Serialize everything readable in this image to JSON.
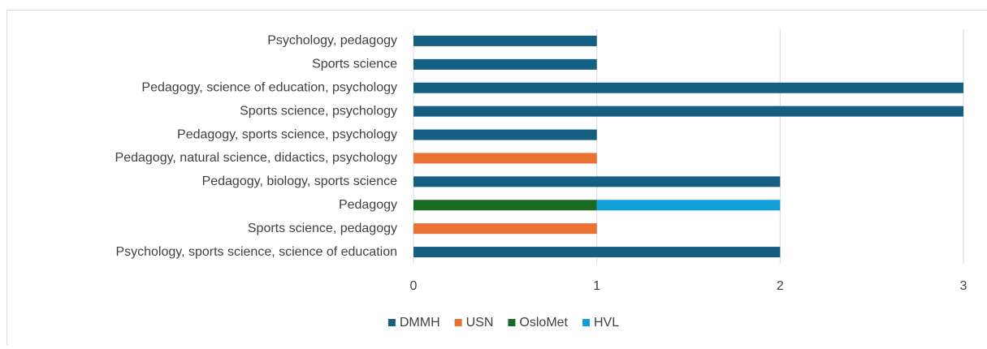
{
  "chart_data": {
    "type": "bar",
    "orientation": "horizontal",
    "stacked": true,
    "categories": [
      "Psychology, pedagogy",
      "Sports science",
      "Pedagogy, science of education, psychology",
      "Sports science, psychology",
      "Pedagogy, sports science, psychology",
      "Pedagogy, natural science, didactics, psychology",
      "Pedagogy, biology, sports science",
      "Pedagogy",
      "Sports science, pedagogy",
      "Psychology, sports science, science of education"
    ],
    "series": [
      {
        "name": "DMMH",
        "color": "#156082",
        "values": [
          1,
          1,
          3,
          3,
          1,
          null,
          2,
          null,
          null,
          2
        ]
      },
      {
        "name": "USN",
        "color": "#e97132",
        "values": [
          null,
          null,
          null,
          null,
          null,
          1,
          null,
          null,
          1,
          null
        ]
      },
      {
        "name": "OsloMet",
        "color": "#196b24",
        "values": [
          null,
          null,
          null,
          null,
          null,
          null,
          null,
          1,
          null,
          null
        ]
      },
      {
        "name": "HVL",
        "color": "#0f9ed5",
        "values": [
          null,
          null,
          null,
          null,
          null,
          null,
          null,
          1,
          null,
          null
        ]
      }
    ],
    "xlim": [
      0,
      3
    ],
    "xticks": [
      0,
      1,
      2,
      3
    ],
    "grid": true,
    "legend": "bottom"
  }
}
